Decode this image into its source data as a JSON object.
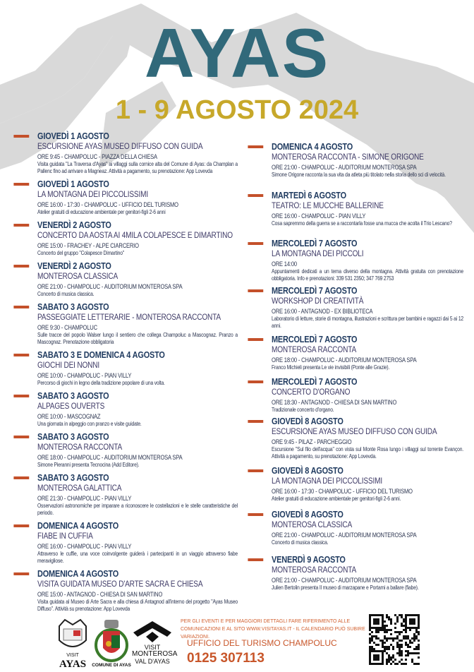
{
  "header": {
    "title": "AYAS",
    "dates": "1 - 9 AGOSTO 2024"
  },
  "colors": {
    "title": "#31697a",
    "dates": "#c7a82a",
    "accent": "#c4502a",
    "heading": "#1f3a5f"
  },
  "left_events": [
    {
      "date": "GIOVEDÌ 1 AGOSTO",
      "title": "ESCURSIONE AYAS MUSEO DIFFUSO CON GUIDA",
      "time": "ORE 9:45 - CHAMPOLUC - PIAZZA DELLA CHIESA",
      "desc": "Visita guidata \"La Traversa d'Ayas\" ai villaggi sulla cornice alta del Comune di Ayas: da Champlan a Pallenc fino ad arrivare a Magneaz. Attività a pagamento, su prenotazione: App Lovevda"
    },
    {
      "date": "GIOVEDÌ 1 AGOSTO",
      "title": "LA MONTAGNA DEI PICCOLISSIMI",
      "time": "ORE 16:00 - 17:30 - CHAMPOLUC - UFFICIO DEL TURISMO",
      "desc": "Atelier gratuiti di educazione ambientale per genitori-figli 2-6 anni"
    },
    {
      "date": "VENERDÌ 2 AGOSTO",
      "title": "CONCERTO DA AOSTA AI 4MILA COLAPESCE E DIMARTINO",
      "time": "ORE 15:00 - FRACHEY - ALPE CIARCERIO",
      "desc": "Concerto del gruppo \"Colapesce Dimartino\""
    },
    {
      "date": "VENERDÌ 2 AGOSTO",
      "title": "MONTEROSA CLASSICA",
      "time": "ORE 21:00 - CHAMPOLUC - AUDITORIUM MONTEROSA SPA",
      "desc": "Concerto di musica classica."
    },
    {
      "date": "SABATO 3 AGOSTO",
      "title": "PASSEGGIATE LETTERARIE - MONTEROSA RACCONTA",
      "time": "ORE 9:30 - CHAMPOLUC",
      "desc": "Sulle tracce del popolo Walser lungo il sentiero che collega Champoluc a Mascognaz. Pranzo a Mascognaz. Prenotazione obbligatoria"
    },
    {
      "date": "SABATO 3 E DOMENICA 4 AGOSTO",
      "title": "GIOCHI DEI NONNI",
      "time": "ORE 10:00 - CHAMPOLUC - PIAN VILLY",
      "desc": "Percorso di giochi in legno della tradizione popolare di una volta."
    },
    {
      "date": "SABATO 3 AGOSTO",
      "title": "ALPAGES OUVERTS",
      "time": "ORE 10:00 - MASCOGNAZ",
      "desc": "Una giornata in alpeggio con pranzo e visite guidate."
    },
    {
      "date": "SABATO 3 AGOSTO",
      "title": "MONTEROSA RACCONTA",
      "time": "ORE 18:00 - CHAMPOLUC -  AUDITORIUM MONTEROSA SPA",
      "desc": "Simone Pieranni presenta Tecnocina (Add Editore)."
    },
    {
      "date": "SABATO 3 AGOSTO",
      "title": "MONTEROSA GALATTICA",
      "time": "ORE 21:30 - CHAMPOLUC - PIAN VILLY",
      "desc": "Osservazioni astronomiche per imparare a riconoscere le costellazioni e le stelle caratteristiche del periodo."
    },
    {
      "date": "DOMENICA 4 AGOSTO",
      "title": "FIABE IN CUFFIA",
      "time": "ORE 16:00 - CHAMPOLUC - PIAN VILLY",
      "desc": "Attraverso le cuffie, una voce coinvolgente guiderà i partecipanti in un viaggio attraverso fiabe meravigliose."
    },
    {
      "date": "DOMENICA 4 AGOSTO",
      "title": "VISITA GUIDATA MUSEO D'ARTE SACRA E CHIESA",
      "time": "ORE 15:00 - ANTAGNOD - CHIESA DI SAN MARTINO",
      "desc": "Visita guidata al Museo di Arte Sacra e alla chiesa di Antagnod all'interno del progetto \"Ayas Museo Diffuso\". Attività su prenotazione: App Lovevda"
    }
  ],
  "right_events": [
    {
      "date": "DOMENICA 4 AGOSTO",
      "title": "MONTEROSA RACCONTA - SIMONE ORIGONE",
      "time": "ORE 21:00 - CHAMPOLUC - AUDITORIUM MONTEROSA SPA",
      "desc": "Simone Origone racconta la sua vita da atleta più titolato nella storia dello sci di velocità."
    },
    {
      "date": "MARTEDÌ 6 AGOSTO",
      "title": "TEATRO: LE MUCCHE BALLERINE",
      "time": "ORE 16:00 - CHAMPOLUC - PIAN VILLY",
      "desc": "Cosa sapremmo della guerra se a raccontarla fosse una mucca che acolta il Trio Lescano?"
    },
    {
      "date": "MERCOLEDÌ 7 AGOSTO",
      "title": "LA MONTAGNA DEI PICCOLI",
      "time": "ORE 14:00",
      "desc": "Appuntamenti dedicati a un tema diverso della montagna. Attività gratuita con prenotazione obbligatoria. Info e prenotazioni: 339 531 2350; 347 769 2753"
    },
    {
      "date": "MERCOLEDÌ 7 AGOSTO",
      "title": "WORKSHOP DI CREATIVITÀ",
      "time": "ORE 16:00 - ANTAGNOD - EX BIBLIOTECA",
      "desc": "Laboratorio di letture, storie di montagna, illustrazioni e scrittura per bambini e ragazzi dai 5 ai 12 anni."
    },
    {
      "date": "MERCOLEDÌ 7 AGOSTO",
      "title": "MONTEROSA RACCONTA",
      "time": "ORE 18:00 - CHAMPOLUC - AUDITORIUM MONTEROSA SPA",
      "desc": "Franco Michieli presenta Le vie invisibili (Ponte alle Grazie)."
    },
    {
      "date": "MERCOLEDÌ 7 AGOSTO",
      "title": "CONCERTO D'ORGANO",
      "time": "ORE 18:30 - ANTAGNOD - CHIESA DI SAN MARTINO",
      "desc": "Tradizionale concerto d'organo."
    },
    {
      "date": "GIOVEDÌ 8 AGOSTO",
      "title": "ESCURSIONE AYAS MUSEO DIFFUSO CON GUIDA",
      "time": "ORE 9:45 - PILAZ - PARCHEGGIO",
      "desc": "Escursione \"Sul filo dell'acqua\" con vista sul Monte Rosa lungo i villaggi sul torrente Evançon. Attività a pagamento, su prenotazione: App Lovevda."
    },
    {
      "date": "GIOVEDÌ 8 AGOSTO",
      "title": "LA MONTAGNA DEI PICCOLISSIMI",
      "time": "ORE 16:00 - 17:30 - CHAMPOLUC - UFFICIO DEL TURISMO",
      "desc": "Atelier gratuiti di educazione ambientale per genitori-figli 2-6 anni."
    },
    {
      "date": "GIOVEDÌ 8 AGOSTO",
      "title": "MONTEROSA CLASSICA",
      "time": "ORE 21:00 - CHAMPOLUC - AUDITORIUM MONTEROSA SPA",
      "desc": "Concerto di musica classica."
    },
    {
      "date": "VENERDÌ 9 AGOSTO",
      "title": "MONTEROSA RACCONTA",
      "time": "ORE 21:00 - CHAMPOLUC -  AUDITORIUM MONTEROSA SPA",
      "desc": "Julien Bertolin presenta Il museo di marzapane e Portami a ballare (fiabe)."
    }
  ],
  "footer": {
    "note": "PER GLI EVENTI E PER MAGGIORI DETTAGLI FARE RIFERIMENTO ALLE COMUNICAZIONI E AL SITO WWW.VISITAYAS.IT - IL CALENDARIO PUÒ SUBIRE VARIAZIONI.",
    "office": "UFFICIO DEL TURISMO CHAMPOLUC",
    "phone": "0125 307113",
    "logos": {
      "visit_ayas_small": "VISIT",
      "visit_ayas": "AYAS",
      "comune": "COMUNE DI AYAS",
      "monterosa": [
        "VISIT",
        "MONTEROSA",
        "VAL D'AYAS"
      ]
    },
    "qr_icon": "qr-code-icon"
  }
}
